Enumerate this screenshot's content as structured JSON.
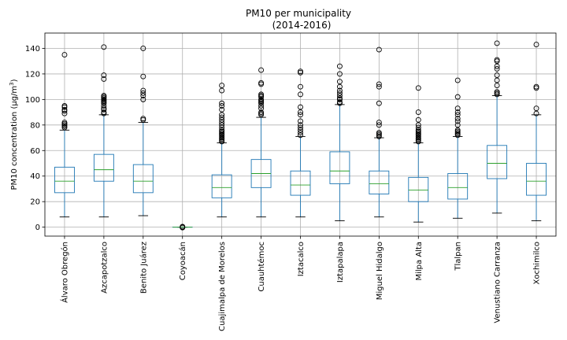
{
  "chart_data": {
    "type": "box",
    "title": "PM10 per municipality",
    "subtitle": "(2014-2016)",
    "xlabel": "",
    "ylabel_main": "PM10 concentration (µg/m",
    "ylabel_sup": "3",
    "ylabel_end": ")",
    "ylim": [
      -7,
      152
    ],
    "yticks": [
      0,
      20,
      40,
      60,
      80,
      100,
      120,
      140
    ],
    "grid": true,
    "colors": {
      "box": "#1f77b4",
      "median": "#2ca02c",
      "whisker": "#1f77b4",
      "cap": "#000000",
      "flier": "#000000"
    },
    "categories": [
      "Álvaro Obregón",
      "Azcapotzalco",
      "Benito Juárez",
      "Coyoacán",
      "Cuajimalpa de Morelos",
      "Cuauhtémoc",
      "Iztacalco",
      "Iztapalapa",
      "Miguel Hidalgo",
      "Milpa Alta",
      "Tlalpan",
      "Venustiano Carranza",
      "Xochimilco"
    ],
    "boxes": [
      {
        "whislo": 8,
        "q1": 27,
        "med": 36,
        "q3": 47,
        "whishi": 76,
        "fliers": [
          78,
          79,
          80,
          81,
          82,
          89,
          91,
          92,
          94,
          95,
          135
        ]
      },
      {
        "whislo": 8,
        "q1": 36,
        "med": 45,
        "q3": 57,
        "whishi": 88,
        "fliers": [
          89,
          90,
          92,
          93,
          95,
          97,
          98,
          99,
          100,
          101,
          102,
          103,
          116,
          119,
          141
        ]
      },
      {
        "whislo": 9,
        "q1": 27,
        "med": 36,
        "q3": 49,
        "whishi": 82,
        "fliers": [
          84,
          85,
          100,
          103,
          105,
          107,
          118,
          140
        ]
      },
      {
        "whislo": 0,
        "q1": 0,
        "med": 0,
        "q3": 0,
        "whishi": 0,
        "fliers": [
          0,
          0.4,
          -0.3
        ]
      },
      {
        "whislo": 8,
        "q1": 23,
        "med": 31,
        "q3": 41,
        "whishi": 66,
        "fliers": [
          67,
          68,
          69,
          70,
          71,
          72,
          73,
          74,
          75,
          76,
          78,
          80,
          82,
          84,
          86,
          88,
          92,
          95,
          97,
          107,
          111
        ]
      },
      {
        "whislo": 8,
        "q1": 31,
        "med": 42,
        "q3": 53,
        "whishi": 86,
        "fliers": [
          88,
          89,
          90,
          93,
          95,
          97,
          98,
          99,
          100,
          102,
          103,
          104,
          112,
          113,
          123
        ]
      },
      {
        "whislo": 8,
        "q1": 25,
        "med": 33,
        "q3": 44,
        "whishi": 71,
        "fliers": [
          72,
          74,
          76,
          78,
          80,
          83,
          88,
          90,
          94,
          104,
          110,
          121,
          122
        ]
      },
      {
        "whislo": 5,
        "q1": 34,
        "med": 44,
        "q3": 59,
        "whishi": 96,
        "fliers": [
          97,
          98,
          100,
          101,
          103,
          105,
          107,
          110,
          114,
          120,
          126
        ]
      },
      {
        "whislo": 8,
        "q1": 26,
        "med": 34,
        "q3": 44,
        "whishi": 70,
        "fliers": [
          71,
          72,
          73,
          74,
          80,
          82,
          97,
          110,
          112,
          139
        ]
      },
      {
        "whislo": 4,
        "q1": 20,
        "med": 29,
        "q3": 39,
        "whishi": 66,
        "fliers": [
          67,
          68,
          69,
          70,
          71,
          72,
          73,
          74,
          75,
          76,
          78,
          80,
          84,
          90,
          109
        ]
      },
      {
        "whislo": 7,
        "q1": 22,
        "med": 31,
        "q3": 42,
        "whishi": 71,
        "fliers": [
          72,
          73,
          74,
          75,
          76,
          80,
          83,
          85,
          88,
          90,
          93,
          102,
          115
        ]
      },
      {
        "whislo": 11,
        "q1": 38,
        "med": 50,
        "q3": 64,
        "whishi": 103,
        "fliers": [
          104,
          105,
          106,
          111,
          115,
          119,
          124,
          126,
          130,
          131,
          144
        ]
      },
      {
        "whislo": 5,
        "q1": 25,
        "med": 36,
        "q3": 50,
        "whishi": 88,
        "fliers": [
          89,
          93,
          109,
          110,
          143
        ]
      }
    ]
  }
}
